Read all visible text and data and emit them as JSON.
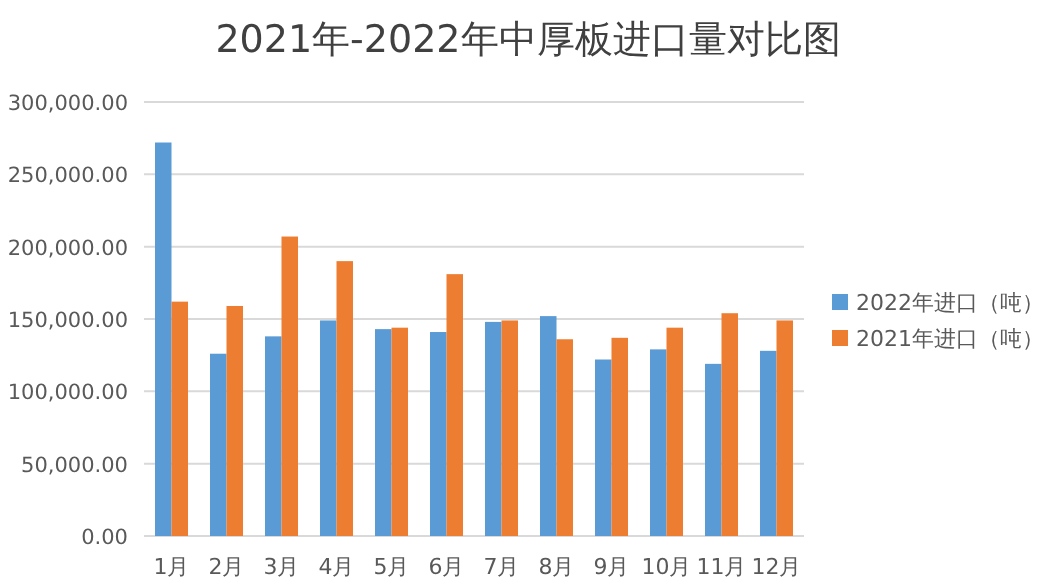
{
  "chart_data": {
    "type": "bar",
    "title": "2021年-2022年中厚板进口量对比图",
    "categories": [
      "1月",
      "2月",
      "3月",
      "4月",
      "5月",
      "6月",
      "7月",
      "8月",
      "9月",
      "10月",
      "11月",
      "12月"
    ],
    "series": [
      {
        "name": "2022年进口（吨）",
        "color": "#5b9bd5",
        "values": [
          272000,
          126000,
          138000,
          149000,
          143000,
          141000,
          148000,
          152000,
          122000,
          129000,
          119000,
          128000
        ]
      },
      {
        "name": "2021年进口（吨）",
        "color": "#ed7d31",
        "values": [
          162000,
          159000,
          207000,
          190000,
          144000,
          181000,
          149000,
          136000,
          137000,
          144000,
          154000,
          149000
        ]
      }
    ],
    "ylim": [
      0,
      300000
    ],
    "yticks": [
      {
        "value": 0,
        "label": "0.00"
      },
      {
        "value": 50000,
        "label": "50,000.00"
      },
      {
        "value": 100000,
        "label": "100,000.00"
      },
      {
        "value": 150000,
        "label": "150,000.00"
      },
      {
        "value": 200000,
        "label": "200,000.00"
      },
      {
        "value": 250000,
        "label": "250,000.00"
      },
      {
        "value": 300000,
        "label": "300,000.00"
      }
    ],
    "grid": "y",
    "legend": "right"
  }
}
